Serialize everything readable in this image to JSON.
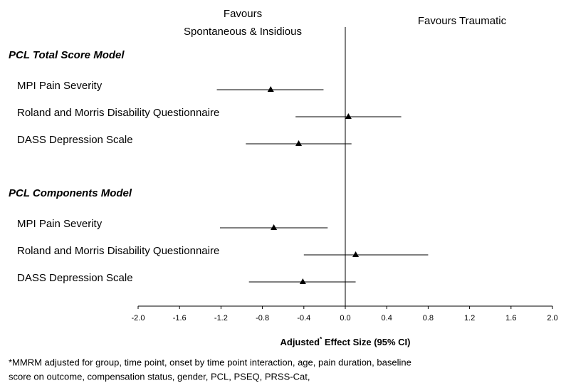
{
  "chart_data": {
    "type": "forest",
    "left_heading": [
      "Favours",
      "Spontaneous & Insidious"
    ],
    "right_heading": "Favours Traumatic",
    "xlabel": "Adjusted",
    "xlabel_sup": "*",
    "xlabel_rest": " Effect Size (95% CI)",
    "xlim": [
      -2,
      2
    ],
    "xticks": [
      {
        "value": -2,
        "label": "-2.0"
      },
      {
        "value": -1.6,
        "label": "-1.6"
      },
      {
        "value": -1.2,
        "label": "-1.2"
      },
      {
        "value": -0.8,
        "label": "-0.8"
      },
      {
        "value": -0.4,
        "label": "-0.4"
      },
      {
        "value": 0,
        "label": "0.0"
      },
      {
        "value": 0.4,
        "label": "0.4"
      },
      {
        "value": 0.8,
        "label": "0.8"
      },
      {
        "value": 1.2,
        "label": "1.2"
      },
      {
        "value": 1.6,
        "label": "1.6"
      },
      {
        "value": 2,
        "label": "2.0"
      }
    ],
    "groups": [
      {
        "name": "PCL Total Score Model",
        "rows": [
          {
            "label": "MPI Pain Severity",
            "value": -0.72,
            "ci_low": -1.24,
            "ci_high": -0.21
          },
          {
            "label": "Roland and Morris Disability Questionnaire",
            "value": 0.03,
            "ci_low": -0.48,
            "ci_high": 0.54
          },
          {
            "label": "DASS Depression Scale",
            "value": -0.45,
            "ci_low": -0.96,
            "ci_high": 0.06
          }
        ]
      },
      {
        "name": "PCL Components Model",
        "rows": [
          {
            "label": "MPI Pain Severity",
            "value": -0.69,
            "ci_low": -1.21,
            "ci_high": -0.17
          },
          {
            "label": "Roland and Morris Disability Questionnaire",
            "value": 0.1,
            "ci_low": -0.4,
            "ci_high": 0.8
          },
          {
            "label": "DASS Depression Scale",
            "value": -0.41,
            "ci_low": -0.93,
            "ci_high": 0.1
          }
        ]
      }
    ],
    "footnote": [
      "*MMRM adjusted for group, time point, onset by time point interaction, age, pain duration, baseline",
      "score on outcome, compensation status, gender, PCL, PSEQ, PRSS-Cat,"
    ]
  }
}
